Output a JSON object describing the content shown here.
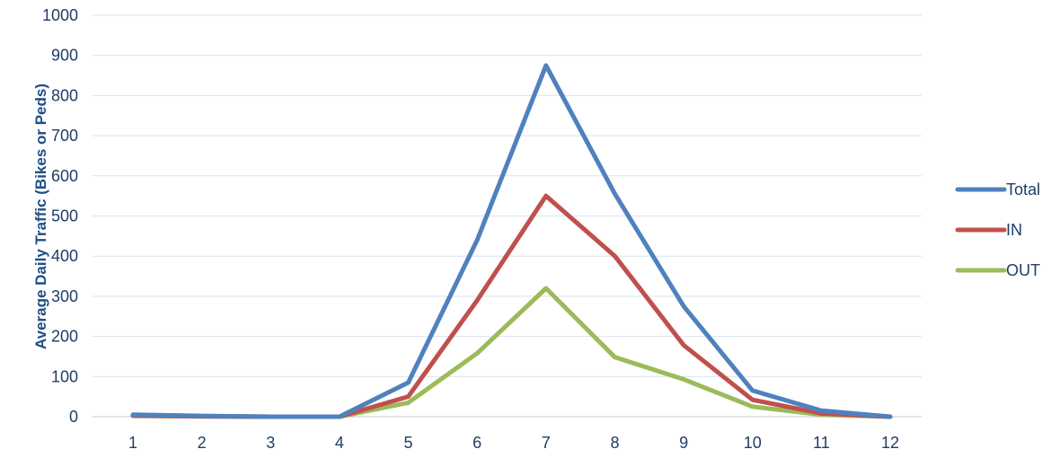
{
  "chart_data": {
    "type": "line",
    "title": "",
    "xlabel": "",
    "ylabel": "Average Daily Traffic (Bikes or Peds)",
    "x": [
      1,
      2,
      3,
      4,
      5,
      6,
      7,
      8,
      9,
      10,
      11,
      12
    ],
    "ylim": [
      0,
      1000
    ],
    "yticks": [
      0,
      100,
      200,
      300,
      400,
      500,
      600,
      700,
      800,
      900,
      1000
    ],
    "grid": true,
    "legend_position": "right",
    "series": [
      {
        "name": "Total",
        "color": "#4F81BD",
        "values": [
          5,
          2,
          0,
          0,
          85,
          440,
          875,
          555,
          275,
          65,
          15,
          0
        ]
      },
      {
        "name": "IN",
        "color": "#C0504D",
        "values": [
          3,
          1,
          0,
          0,
          50,
          290,
          550,
          400,
          178,
          42,
          8,
          0
        ]
      },
      {
        "name": "OUT",
        "color": "#9BBB59",
        "values": [
          2,
          1,
          0,
          0,
          35,
          158,
          320,
          148,
          93,
          25,
          5,
          0
        ]
      }
    ]
  }
}
